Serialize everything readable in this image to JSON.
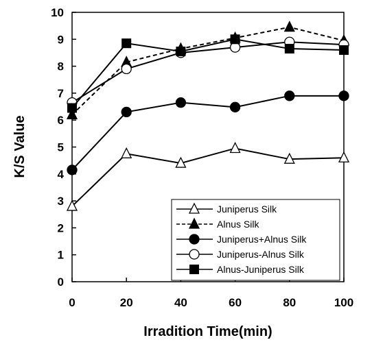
{
  "chart_data": {
    "type": "line",
    "title": "",
    "xlabel": "Irradition  Time(min)",
    "ylabel": "K/S Value",
    "x": [
      0,
      20,
      40,
      60,
      80,
      100
    ],
    "xlim": [
      0,
      100
    ],
    "ylim": [
      0,
      10
    ],
    "xticks": [
      "0",
      "20",
      "40",
      "60",
      "80",
      "100"
    ],
    "yticks": [
      "0",
      "1",
      "2",
      "3",
      "4",
      "5",
      "6",
      "7",
      "8",
      "9",
      "10"
    ],
    "grid": false,
    "legend_position": "bottom-right",
    "series": [
      {
        "name": "Juniperus Silk",
        "values": [
          2.8,
          4.75,
          4.4,
          4.95,
          4.55,
          4.6
        ],
        "marker": "triangle-open",
        "line": "solid"
      },
      {
        "name": "Alnus Silk",
        "values": [
          6.2,
          8.15,
          8.65,
          9.05,
          9.45,
          8.95
        ],
        "marker": "triangle-filled",
        "line": "dashed"
      },
      {
        "name": "Juniperus+Alnus Silk",
        "values": [
          4.15,
          6.3,
          6.65,
          6.48,
          6.9,
          6.9
        ],
        "marker": "circle-filled",
        "line": "solid"
      },
      {
        "name": "Juniperus-Alnus Silk",
        "values": [
          6.65,
          7.9,
          8.5,
          8.7,
          8.9,
          8.8
        ],
        "marker": "circle-open",
        "line": "solid"
      },
      {
        "name": "Alnus-Juniperus Silk",
        "values": [
          6.45,
          8.85,
          8.55,
          9.0,
          8.65,
          8.6
        ],
        "marker": "square-filled",
        "line": "solid"
      }
    ]
  }
}
